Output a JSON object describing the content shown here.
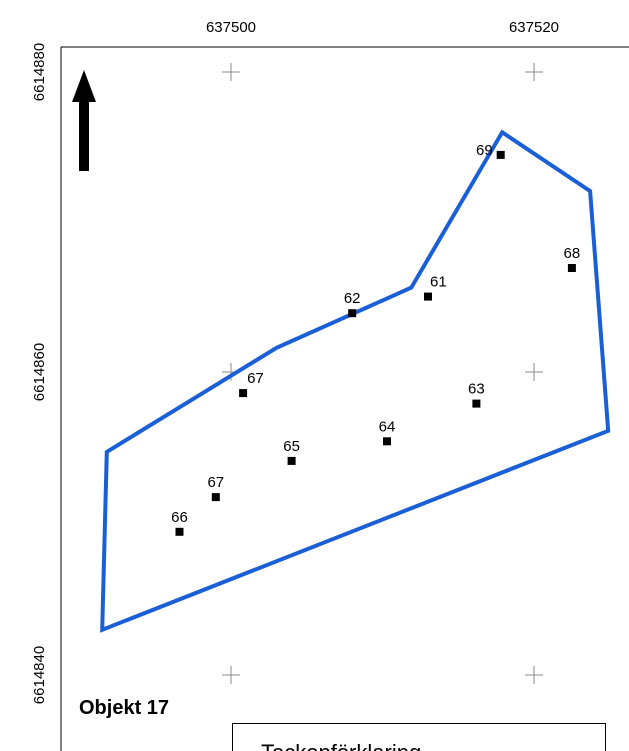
{
  "map": {
    "x_axis_labels": [
      "637500",
      "637520"
    ],
    "y_axis_labels": [
      "6614880",
      "6614860",
      "6614840"
    ],
    "outline_color": "#1a5fd6",
    "north_arrow_icon": "north-arrow-icon"
  },
  "points": [
    {
      "id": "69",
      "e": 637517.8,
      "n": 6614874.5
    },
    {
      "id": "68",
      "e": 637522.5,
      "n": 6614867.0
    },
    {
      "id": "61",
      "e": 637513.0,
      "n": 6614865.1
    },
    {
      "id": "62",
      "e": 637508.0,
      "n": 6614864.0
    },
    {
      "id": "67",
      "e": 637500.8,
      "n": 6614858.7
    },
    {
      "id": "63",
      "e": 637516.2,
      "n": 6614858.0
    },
    {
      "id": "64",
      "e": 637510.3,
      "n": 6614855.5
    },
    {
      "id": "65",
      "e": 637504.0,
      "n": 6614854.2
    },
    {
      "id": "67",
      "e": 637499.0,
      "n": 6614851.8
    },
    {
      "id": "66",
      "e": 637496.6,
      "n": 6614849.5
    }
  ],
  "boundary": [
    [
      637517.9,
      6614876.0
    ],
    [
      637523.7,
      6614872.1
    ],
    [
      637524.9,
      6614856.2
    ],
    [
      637491.5,
      6614843.0
    ],
    [
      637491.8,
      6614854.8
    ],
    [
      637503.0,
      6614861.7
    ],
    [
      637511.9,
      6614865.7
    ]
  ],
  "object_title": "Objekt 17",
  "legend_text": "Teckenförklaring"
}
